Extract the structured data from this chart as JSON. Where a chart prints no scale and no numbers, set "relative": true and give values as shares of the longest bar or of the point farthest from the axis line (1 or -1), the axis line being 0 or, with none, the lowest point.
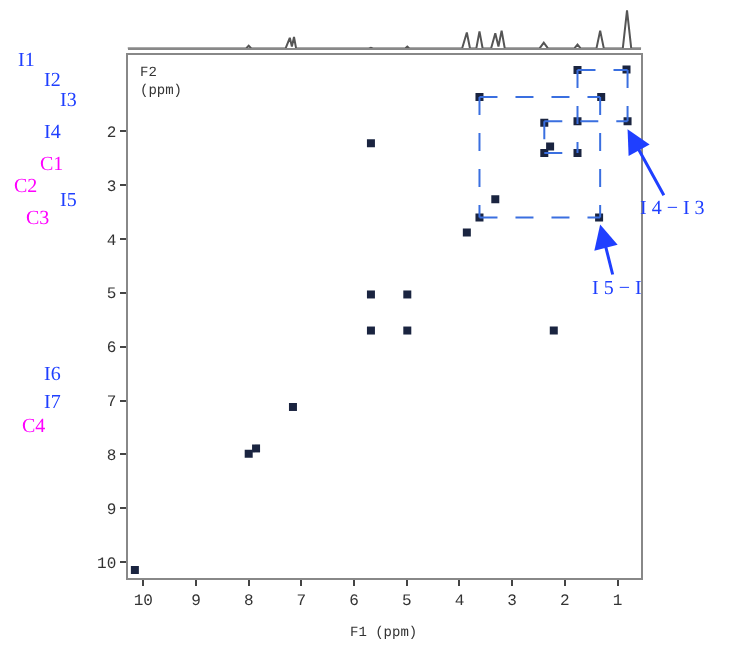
{
  "chart_data": [
    {
      "type": "line",
      "relative": true,
      "tick_labels": false,
      "marker": "none",
      "line_style": "solid",
      "x": [
        10.3,
        8.05,
        8.0,
        7.95,
        7.3,
        7.22,
        7.18,
        7.14,
        7.1,
        7.0,
        5.72,
        5.68,
        5.64,
        5.03,
        4.99,
        4.95,
        3.95,
        3.86,
        3.8,
        3.68,
        3.62,
        3.56,
        3.4,
        3.32,
        3.26,
        3.2,
        3.14,
        2.48,
        2.4,
        2.32,
        1.82,
        1.76,
        1.7,
        1.4,
        1.33,
        1.26,
        0.9,
        0.82,
        0.74,
        0.55
      ],
      "series": [
        {
          "color": "#555555",
          "values": [
            0,
            0,
            0.07,
            0,
            0,
            0.28,
            0.05,
            0.3,
            0,
            0,
            0,
            0.02,
            0,
            0,
            0.05,
            0,
            0,
            0.42,
            0,
            0,
            0.45,
            0,
            0,
            0.4,
            0.05,
            0.47,
            0,
            0,
            0.15,
            0,
            0,
            0.1,
            0,
            0,
            0.47,
            0,
            0,
            1,
            0,
            0
          ]
        }
      ],
      "xlim": [
        10.3,
        0.55
      ]
    },
    {
      "type": "scatter",
      "xlabel": "F1 (ppm)",
      "ylabel": "F2 (ppm)",
      "xlim": [
        10.3,
        0.55
      ],
      "ylim": [
        10.3,
        0.58
      ],
      "xticks": [
        10,
        9,
        8,
        7,
        6,
        5,
        4,
        3,
        2,
        1
      ],
      "yticks": [
        2,
        3,
        4,
        5,
        6,
        7,
        8,
        9,
        10
      ],
      "series": [
        {
          "type": "scatter",
          "marker": "square",
          "color": "#1a2440",
          "x": [
            0.83,
            1.76,
            1.31,
            3.62,
            2.39,
            1.76,
            0.81,
            2.28,
            1.76,
            2.39,
            3.32,
            3.62,
            1.35,
            3.86,
            5.68,
            5.68,
            4.99,
            5.68,
            4.99,
            2.21,
            7.16,
            8.0,
            7.86,
            10.16
          ],
          "values": [
            0.85,
            0.86,
            1.36,
            1.36,
            1.84,
            1.81,
            1.81,
            2.28,
            2.4,
            2.4,
            3.26,
            3.6,
            3.6,
            3.88,
            2.22,
            5.03,
            5.03,
            5.7,
            5.7,
            5.7,
            7.12,
            7.99,
            7.89,
            10.15
          ]
        },
        {
          "type": "line",
          "marker": "none",
          "line_style": "dashed",
          "color": "#3a6fe0",
          "x": [
            3.62,
            1.33
          ],
          "values": [
            1.36,
            1.36
          ]
        },
        {
          "type": "line",
          "marker": "none",
          "line_style": "dashed",
          "color": "#3a6fe0",
          "x": [
            1.33,
            1.33
          ],
          "values": [
            1.36,
            3.6
          ]
        },
        {
          "type": "line",
          "marker": "none",
          "line_style": "dashed",
          "color": "#3a6fe0",
          "x": [
            3.62,
            1.33
          ],
          "values": [
            3.6,
            3.6
          ]
        },
        {
          "type": "line",
          "marker": "none",
          "line_style": "dashed",
          "color": "#3a6fe0",
          "x": [
            3.62,
            3.62
          ],
          "values": [
            1.36,
            3.6
          ]
        },
        {
          "type": "line",
          "marker": "none",
          "line_style": "dashed",
          "color": "#3a6fe0",
          "x": [
            1.76,
            0.81
          ],
          "values": [
            0.86,
            0.86
          ]
        },
        {
          "type": "line",
          "marker": "none",
          "line_style": "dashed",
          "color": "#3a6fe0",
          "x": [
            0.81,
            0.81
          ],
          "values": [
            0.86,
            1.81
          ]
        },
        {
          "type": "line",
          "marker": "none",
          "line_style": "dashed",
          "color": "#3a6fe0",
          "x": [
            2.39,
            0.81
          ],
          "values": [
            1.81,
            1.81
          ]
        },
        {
          "type": "line",
          "marker": "none",
          "line_style": "dashed",
          "color": "#3a6fe0",
          "x": [
            1.76,
            1.76
          ],
          "values": [
            0.86,
            2.4
          ]
        },
        {
          "type": "line",
          "marker": "none",
          "line_style": "dashed",
          "color": "#3a6fe0",
          "x": [
            2.39,
            1.76
          ],
          "values": [
            2.4,
            2.4
          ]
        },
        {
          "type": "line",
          "marker": "none",
          "line_style": "dashed",
          "color": "#3a6fe0",
          "x": [
            2.39,
            2.39
          ],
          "values": [
            1.81,
            2.4
          ]
        }
      ],
      "annotations": [
        {
          "text": "I 4 − I 3",
          "x": 0.81,
          "y": 1.96
        },
        {
          "text": "I 5 − I",
          "x": 1.33,
          "y": 3.73
        },
        "I1",
        "I2",
        "I3",
        "I4",
        "C1",
        "C2",
        "I5",
        "C3",
        "I6",
        "I7",
        "C4"
      ]
    }
  ]
}
